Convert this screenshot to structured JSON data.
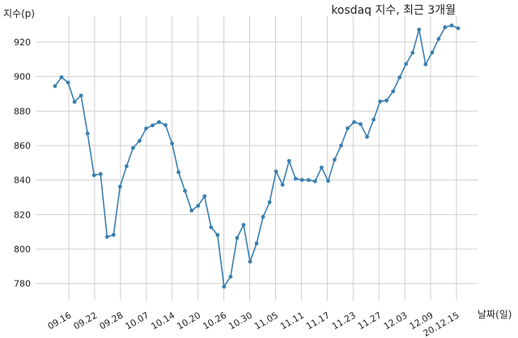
{
  "chart_data": {
    "type": "line",
    "title": "kosdaq 지수, 최근 3개월",
    "xlabel": "날짜(일)",
    "ylabel": "지수(p)",
    "ylim": [
      770,
      935
    ],
    "yticks": [
      780,
      800,
      820,
      840,
      860,
      880,
      900,
      920
    ],
    "xtick_labels": [
      "09.16",
      "09.22",
      "09.28",
      "10.07",
      "10.14",
      "10.20",
      "10.26",
      "10.30",
      "11.05",
      "11.11",
      "11.17",
      "11.23",
      "11.27",
      "12.03",
      "12.09",
      "20.12.15"
    ],
    "grid": true,
    "legend": "none",
    "colors": {
      "line": "#3a7fb0",
      "grid": "#cfcfcf"
    },
    "series": [
      {
        "values": [
          894.5,
          899.6,
          896.5,
          885.3,
          889.0,
          867.0,
          842.8,
          843.5,
          807.1,
          808.2,
          836.2,
          848.0,
          858.6,
          862.7,
          869.9,
          871.7,
          873.6,
          871.9,
          861.2,
          844.6,
          833.7,
          822.3,
          825.1,
          830.6,
          812.6,
          808.2,
          778.2,
          784.0,
          806.4,
          814.0,
          792.7,
          803.3,
          818.6,
          827.2,
          845.0,
          837.2,
          851.1,
          840.8,
          840.1,
          840.0,
          839.3,
          847.3,
          839.5,
          851.8,
          860.0,
          870.0,
          873.6,
          872.4,
          865.0,
          875.0,
          885.6,
          886.1,
          891.4,
          899.5,
          907.3,
          913.8,
          927.2,
          907.1,
          913.9,
          921.8,
          928.6,
          929.6,
          928.0
        ]
      }
    ]
  }
}
